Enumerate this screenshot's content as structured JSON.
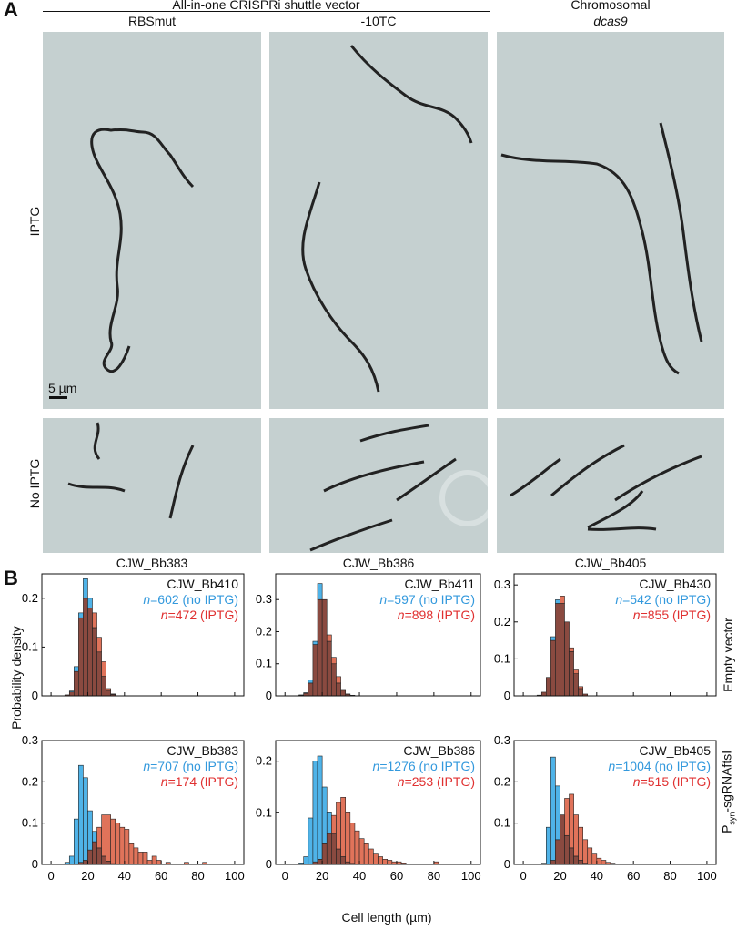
{
  "panel_a": {
    "letter": "A",
    "group_header": "All-in-one CRISPRi shuttle vector",
    "columns": [
      {
        "label": "RBSmut",
        "sublabel": ""
      },
      {
        "label": "-10TC",
        "sublabel": ""
      },
      {
        "label": "Chromosomal",
        "sublabel": "dcas9"
      }
    ],
    "rows": [
      {
        "label": "IPTG"
      },
      {
        "label": "No IPTG"
      }
    ],
    "scale_bar": "5 µm",
    "strains": [
      "CJW_Bb383",
      "CJW_Bb386",
      "CJW_Bb405"
    ]
  },
  "panel_b": {
    "letter": "B",
    "ylabel": "Probability density",
    "xlabel": "Cell length (µm)",
    "row_labels": [
      "Empty vector",
      "P_syn-sgRNAftsI"
    ],
    "row_label_parts": {
      "prefix": "P",
      "sub": "syn",
      "suffix": "-sgRNAftsI"
    },
    "colors": {
      "no_iptg": "#4fb3e8",
      "iptg": "#e0735a",
      "overlap": "#8a4a40"
    }
  },
  "chart_data": [
    {
      "type": "bar",
      "strain": "CJW_Bb410",
      "row": "Empty vector",
      "xlabel": "",
      "ylabel": "Probability density",
      "xlim": [
        -5,
        105
      ],
      "ylim": [
        0,
        0.25
      ],
      "yticks": [
        0,
        0.1,
        0.2
      ],
      "bin_width": 2.5,
      "bin_start": 5,
      "series": [
        {
          "name": "n=602 (no IPTG)",
          "n_label": "=602 (no IPTG)",
          "values": [
            0,
            0,
            0.002,
            0.01,
            0.06,
            0.17,
            0.24,
            0.2,
            0.14,
            0.09,
            0.04,
            0.01,
            0.003,
            0,
            0,
            0,
            0,
            0,
            0,
            0,
            0,
            0,
            0,
            0,
            0,
            0,
            0,
            0,
            0,
            0,
            0,
            0,
            0,
            0,
            0,
            0,
            0,
            0
          ]
        },
        {
          "name": "n=472 (IPTG)",
          "n_label": "=472 (IPTG)",
          "values": [
            0,
            0,
            0.002,
            0.008,
            0.05,
            0.16,
            0.2,
            0.18,
            0.17,
            0.12,
            0.07,
            0.015,
            0.004,
            0,
            0,
            0,
            0,
            0,
            0,
            0,
            0,
            0,
            0,
            0,
            0,
            0,
            0,
            0,
            0,
            0,
            0,
            0,
            0,
            0,
            0,
            0,
            0,
            0
          ]
        }
      ]
    },
    {
      "type": "bar",
      "strain": "CJW_Bb411",
      "row": "Empty vector",
      "xlabel": "",
      "ylabel": "",
      "xlim": [
        -5,
        105
      ],
      "ylim": [
        0,
        0.38
      ],
      "yticks": [
        0,
        0.1,
        0.2,
        0.3
      ],
      "bin_width": 2.5,
      "bin_start": 5,
      "series": [
        {
          "name": "n=597 (no IPTG)",
          "n_label": "=597 (no IPTG)",
          "values": [
            0,
            0,
            0.003,
            0.01,
            0.05,
            0.17,
            0.35,
            0.3,
            0.17,
            0.1,
            0.04,
            0.015,
            0.005,
            0,
            0,
            0,
            0,
            0,
            0,
            0,
            0,
            0,
            0,
            0,
            0,
            0,
            0,
            0,
            0,
            0,
            0,
            0,
            0,
            0,
            0,
            0,
            0,
            0
          ]
        },
        {
          "name": "n=898 (IPTG)",
          "n_label": "=898 (IPTG)",
          "values": [
            0,
            0,
            0.002,
            0.008,
            0.04,
            0.16,
            0.3,
            0.3,
            0.19,
            0.12,
            0.06,
            0.02,
            0.006,
            0.002,
            0,
            0,
            0,
            0,
            0,
            0,
            0,
            0,
            0,
            0,
            0,
            0,
            0,
            0,
            0,
            0,
            0,
            0,
            0,
            0,
            0,
            0,
            0,
            0
          ]
        }
      ]
    },
    {
      "type": "bar",
      "strain": "CJW_Bb430",
      "row": "Empty vector",
      "xlabel": "",
      "ylabel": "",
      "xlim": [
        -5,
        105
      ],
      "ylim": [
        0,
        0.33
      ],
      "yticks": [
        0,
        0.1,
        0.2,
        0.3
      ],
      "bin_width": 2.5,
      "bin_start": 5,
      "series": [
        {
          "name": "n=542 (no IPTG)",
          "n_label": "=542 (no IPTG)",
          "values": [
            0,
            0,
            0.002,
            0.01,
            0.05,
            0.16,
            0.26,
            0.25,
            0.2,
            0.12,
            0.06,
            0.02,
            0.005,
            0,
            0,
            0,
            0,
            0,
            0,
            0,
            0,
            0,
            0,
            0,
            0,
            0,
            0,
            0,
            0,
            0,
            0,
            0,
            0,
            0,
            0,
            0,
            0,
            0
          ]
        },
        {
          "name": "n=855 (IPTG)",
          "n_label": "=855 (IPTG)",
          "values": [
            0,
            0,
            0.002,
            0.01,
            0.05,
            0.15,
            0.25,
            0.27,
            0.2,
            0.13,
            0.07,
            0.025,
            0.005,
            0,
            0,
            0,
            0,
            0,
            0,
            0,
            0,
            0,
            0,
            0,
            0,
            0,
            0,
            0,
            0,
            0,
            0,
            0,
            0,
            0,
            0,
            0,
            0,
            0
          ]
        }
      ]
    },
    {
      "type": "bar",
      "strain": "CJW_Bb383",
      "row": "P_syn-sgRNAftsI",
      "xlabel": "",
      "ylabel": "Probability density",
      "xlim": [
        -5,
        105
      ],
      "ylim": [
        0,
        0.3
      ],
      "yticks": [
        0,
        0.1,
        0.2,
        0.3
      ],
      "xticks": [
        0,
        20,
        40,
        60,
        80,
        100
      ],
      "bin_width": 2.5,
      "bin_start": 5,
      "series": [
        {
          "name": "n=707 (no IPTG)",
          "n_label": "=707 (no IPTG)",
          "values": [
            0,
            0,
            0.005,
            0.02,
            0.11,
            0.24,
            0.21,
            0.13,
            0.08,
            0.04,
            0.02,
            0.008,
            0.002,
            0,
            0,
            0,
            0,
            0,
            0,
            0,
            0,
            0,
            0,
            0,
            0,
            0,
            0,
            0,
            0,
            0,
            0,
            0,
            0,
            0,
            0,
            0,
            0,
            0
          ]
        },
        {
          "name": "n=174 (IPTG)",
          "n_label": "=174 (IPTG)",
          "values": [
            0,
            0,
            0,
            0,
            0,
            0.005,
            0.01,
            0.035,
            0.055,
            0.09,
            0.12,
            0.12,
            0.11,
            0.1,
            0.09,
            0.085,
            0.05,
            0.04,
            0.03,
            0.03,
            0.01,
            0.02,
            0.01,
            0,
            0.005,
            0,
            0,
            0,
            0.005,
            0,
            0,
            0,
            0.005,
            0,
            0,
            0,
            0,
            0
          ]
        }
      ]
    },
    {
      "type": "bar",
      "strain": "CJW_Bb386",
      "row": "P_syn-sgRNAftsI",
      "xlabel": "Cell length (µm)",
      "ylabel": "",
      "xlim": [
        -5,
        105
      ],
      "ylim": [
        0,
        0.24
      ],
      "yticks": [
        0,
        0.1,
        0.2
      ],
      "xticks": [
        0,
        20,
        40,
        60,
        80,
        100
      ],
      "bin_width": 2.5,
      "bin_start": 5,
      "series": [
        {
          "name": "n=1276 (no IPTG)",
          "n_label": "=1276 (no IPTG)",
          "values": [
            0,
            0,
            0.003,
            0.015,
            0.09,
            0.2,
            0.21,
            0.15,
            0.1,
            0.06,
            0.03,
            0.015,
            0.005,
            0.002,
            0,
            0,
            0,
            0,
            0,
            0,
            0,
            0,
            0,
            0,
            0,
            0,
            0,
            0,
            0,
            0,
            0,
            0,
            0,
            0,
            0,
            0,
            0,
            0
          ]
        },
        {
          "name": "n=253 (IPTG)",
          "n_label": "=253 (IPTG)",
          "values": [
            0,
            0,
            0,
            0,
            0,
            0.005,
            0.01,
            0.04,
            0.06,
            0.095,
            0.12,
            0.13,
            0.1,
            0.08,
            0.065,
            0.05,
            0.04,
            0.03,
            0.02,
            0.015,
            0.01,
            0.008,
            0.005,
            0.005,
            0.003,
            0,
            0,
            0,
            0,
            0,
            0,
            0.005,
            0,
            0,
            0,
            0,
            0,
            0
          ]
        }
      ]
    },
    {
      "type": "bar",
      "strain": "CJW_Bb405",
      "row": "P_syn-sgRNAftsI",
      "xlabel": "",
      "ylabel": "",
      "xlim": [
        -5,
        105
      ],
      "ylim": [
        0,
        0.3
      ],
      "yticks": [
        0,
        0.1,
        0.2,
        0.3
      ],
      "xticks": [
        0,
        20,
        40,
        60,
        80,
        100
      ],
      "bin_width": 2.5,
      "bin_start": 5,
      "series": [
        {
          "name": "n=1004 (no IPTG)",
          "n_label": "=1004 (no IPTG)",
          "values": [
            0,
            0,
            0,
            0.003,
            0.09,
            0.26,
            0.19,
            0.12,
            0.07,
            0.04,
            0.02,
            0.01,
            0.003,
            0,
            0,
            0,
            0,
            0,
            0,
            0,
            0,
            0,
            0,
            0,
            0,
            0,
            0,
            0,
            0,
            0,
            0,
            0,
            0,
            0,
            0,
            0,
            0,
            0
          ]
        },
        {
          "name": "n=515 (IPTG)",
          "n_label": "=515 (IPTG)",
          "values": [
            0,
            0,
            0,
            0,
            0,
            0.01,
            0.06,
            0.12,
            0.16,
            0.17,
            0.12,
            0.09,
            0.06,
            0.04,
            0.025,
            0.015,
            0.01,
            0.005,
            0.003,
            0,
            0,
            0,
            0,
            0,
            0,
            0,
            0,
            0,
            0,
            0,
            0,
            0,
            0,
            0,
            0,
            0,
            0,
            0
          ]
        }
      ]
    }
  ]
}
